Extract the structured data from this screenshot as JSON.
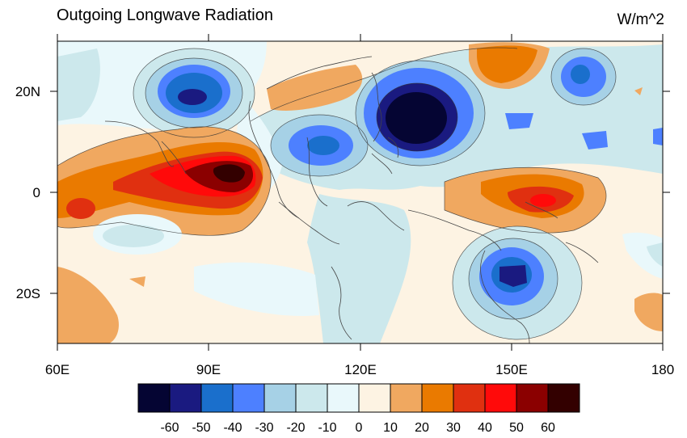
{
  "title": "Outgoing Longwave Radiation",
  "units": "W/m^2",
  "map": {
    "lon_range": [
      60,
      180
    ],
    "lat_range": [
      -30,
      30
    ],
    "x_ticks": [
      "60E",
      "90E",
      "120E",
      "150E",
      "180"
    ],
    "y_ticks": [
      "20N",
      "0",
      "20S"
    ]
  },
  "colorbar": {
    "levels": [
      "-60",
      "-50",
      "-40",
      "-30",
      "-20",
      "-10",
      "0",
      "10",
      "20",
      "30",
      "40",
      "50",
      "60"
    ],
    "colors": [
      "#050533",
      "#1a1a80",
      "#1a6fcc",
      "#4d80ff",
      "#a6d1e6",
      "#cce8ec",
      "#e9f8fb",
      "#fdf3e3",
      "#f0a860",
      "#ea7a00",
      "#e03010",
      "#ff0a0a",
      "#8b0000",
      "#330000"
    ]
  }
}
